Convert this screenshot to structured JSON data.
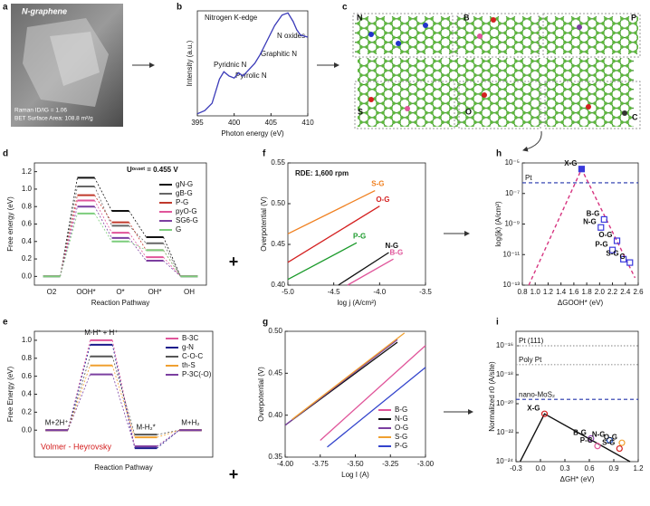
{
  "figure": {
    "panel_labels": [
      "a",
      "b",
      "c",
      "d",
      "f",
      "h",
      "e",
      "g",
      "i"
    ],
    "photo": {
      "title": "N-graphene",
      "raman": "Raman ID/IG = 1.06",
      "bet": "BET Surface Area: 108.8 m²/g"
    },
    "structure": {
      "labels": [
        "N",
        "B",
        "P",
        "S",
        "O",
        "C"
      ]
    },
    "plus_signs": [
      "+",
      "+"
    ]
  },
  "chart_data": [
    {
      "type": "line",
      "title": "Nitrogen K-edge",
      "x_label": "Photon energy (eV)",
      "y_label": "Intensity (a.u.)",
      "xlim": [
        395,
        410
      ],
      "ylim": [
        0,
        1
      ],
      "xticks": [
        395,
        400,
        405,
        410
      ],
      "series": [
        {
          "color": "#3a3ab8",
          "x": [
            395,
            396,
            397,
            398,
            398.6,
            399.3,
            400,
            400.6,
            401.2,
            402,
            402.8,
            403.5,
            404.5,
            405.5,
            406.5,
            407.3,
            408,
            408.5,
            409,
            410
          ],
          "values": [
            0.02,
            0.05,
            0.12,
            0.35,
            0.42,
            0.38,
            0.36,
            0.41,
            0.38,
            0.44,
            0.5,
            0.58,
            0.72,
            0.86,
            0.96,
            0.98,
            0.9,
            0.82,
            0.77,
            0.75
          ]
        }
      ],
      "annotations": [
        "Pyridnic N",
        "Pyrrolic N",
        "Graphitic N",
        "N oxides"
      ]
    },
    {
      "type": "energy",
      "x_label": "Reaction Pathway",
      "y_label": "Free energy (eV)",
      "categories": [
        "O2",
        "OOH*",
        "O*",
        "OH*",
        "OH"
      ],
      "ylim": [
        -0.1,
        1.3
      ],
      "yticks": [
        {
          "value": 0,
          "label": "0.0"
        },
        0.2,
        0.4,
        0.6,
        0.8,
        {
          "value": 1,
          "label": "1.0"
        },
        1.2
      ],
      "legend": "upper right",
      "annotations": [
        "Uᵒⁿˢᵉᵗ = 0.455 V"
      ],
      "series": [
        {
          "name": "gN-G",
          "color": "#111111",
          "values": [
            0,
            1.13,
            0.75,
            0.45,
            0
          ]
        },
        {
          "name": "gB-G",
          "color": "#666666",
          "values": [
            0,
            1.03,
            0.58,
            0.38,
            0
          ]
        },
        {
          "name": "P-G",
          "color": "#c0392b",
          "values": [
            0,
            0.93,
            0.62,
            0.3,
            0
          ]
        },
        {
          "name": "pyO-G",
          "color": "#e0559a",
          "values": [
            0,
            0.87,
            0.5,
            0.22,
            0
          ]
        },
        {
          "name": "SG6-G",
          "color": "#7b3fa0",
          "values": [
            0,
            0.8,
            0.44,
            0.18,
            0
          ]
        },
        {
          "name": "G",
          "color": "#7ccd7c",
          "values": [
            0,
            0.72,
            0.4,
            0.3,
            0
          ]
        }
      ]
    },
    {
      "type": "line",
      "title": "RDE: 1,600 rpm",
      "x_label": "log j (A/cm²)",
      "y_label": "Overpotential (V)",
      "xlim": [
        -5.0,
        -3.5
      ],
      "ylim": [
        0.4,
        0.55
      ],
      "xticks": [
        {
          "value": -5,
          "label": "-5.0"
        },
        -4.5,
        {
          "value": -4,
          "label": "-4.0"
        },
        -3.5
      ],
      "yticks": [
        {
          "value": 0.4,
          "label": "0.40"
        },
        0.45,
        {
          "value": 0.5,
          "label": "0.50"
        },
        0.55
      ],
      "series": [
        {
          "name": "S-G",
          "color": "#f08020",
          "x": [
            -5.0,
            -4.05
          ],
          "values": [
            0.463,
            0.516
          ]
        },
        {
          "name": "O-G",
          "color": "#d42020",
          "x": [
            -5.0,
            -4.0
          ],
          "values": [
            0.428,
            0.497
          ]
        },
        {
          "name": "P-G",
          "color": "#1a9a2a",
          "x": [
            -5.0,
            -4.25
          ],
          "values": [
            0.407,
            0.452
          ]
        },
        {
          "name": "N-G",
          "color": "#111111",
          "x": [
            -4.45,
            -3.9
          ],
          "values": [
            0.4,
            0.44
          ]
        },
        {
          "name": "B-G",
          "color": "#e0559a",
          "x": [
            -4.35,
            -3.85
          ],
          "values": [
            0.4,
            0.432
          ]
        }
      ]
    },
    {
      "type": "scatter",
      "log_y": true,
      "x_label": "ΔGOOH* (eV)",
      "y_label": "log(jk) (A/cm²)",
      "xlim": [
        0.8,
        2.6
      ],
      "ylim": [
        1e-13,
        1e-05
      ],
      "xticks": [
        0.8,
        {
          "value": 1,
          "label": "1.0"
        },
        1.2,
        1.4,
        1.6,
        1.8,
        {
          "value": 2,
          "label": "2.0"
        },
        2.2,
        2.4,
        2.6
      ],
      "yticks": [
        {
          "value": 1e-13,
          "label": "10⁻¹³"
        },
        {
          "value": 1e-11,
          "label": "10⁻¹¹"
        },
        {
          "value": 1e-09,
          "label": "10⁻⁹"
        },
        {
          "value": 1e-07,
          "label": "10⁻⁷"
        },
        {
          "value": 1e-05,
          "label": "10⁻⁵"
        }
      ],
      "ref_lines": [
        {
          "label": "Pt",
          "value": 5e-07,
          "color": "#2233aa",
          "style": "dashed"
        }
      ],
      "lines": [
        {
          "color": "#d6337f",
          "style": "dashed",
          "x": [
            0.9,
            1.72,
            2.55
          ],
          "values": [
            1e-13,
            4e-06,
            3e-13
          ]
        }
      ],
      "points": {
        "marker": "square",
        "color": "#3a3adc",
        "names": [
          "X-G",
          "B-G",
          "N-G",
          "O-G",
          "P-G",
          "S-G",
          "G"
        ],
        "x": [
          1.72,
          2.07,
          2.02,
          2.27,
          2.2,
          2.37,
          2.47
        ],
        "values": [
          4e-06,
          2e-09,
          6e-10,
          8e-11,
          2e-11,
          5e-12,
          3e-12
        ]
      }
    },
    {
      "type": "energy",
      "x_label": "Reaction Pathway",
      "y_label": "Free Energy (eV)",
      "categories": [
        "M+2H⁺",
        "M-H* + H⁺",
        "M-H₂*",
        "M+H₂"
      ],
      "ylim": [
        -0.3,
        1.1
      ],
      "yticks": [
        {
          "value": 0,
          "label": "0.0"
        },
        0.2,
        0.4,
        0.6,
        0.8,
        {
          "value": 1,
          "label": "1.0"
        }
      ],
      "legend": "upper right",
      "annotations": [
        "Volmer - Heyrovsky"
      ],
      "series": [
        {
          "name": "B-3C",
          "color": "#e0559a",
          "values": [
            0,
            1.0,
            -0.18,
            0
          ]
        },
        {
          "name": "g-N",
          "color": "#1a1a8c",
          "values": [
            0,
            0.95,
            -0.2,
            0
          ]
        },
        {
          "name": "C-O-C",
          "color": "#555555",
          "values": [
            0,
            0.82,
            -0.05,
            0
          ]
        },
        {
          "name": "th-S",
          "color": "#f0a030",
          "values": [
            0,
            0.72,
            -0.08,
            0
          ]
        },
        {
          "name": "P-3C(-O)",
          "color": "#7b3fa0",
          "values": [
            0,
            0.62,
            -0.18,
            0
          ]
        }
      ]
    },
    {
      "type": "line",
      "x_label": "Log I (A)",
      "y_label": "Overpotential (V)",
      "xlim": [
        -4.0,
        -3.0
      ],
      "ylim": [
        0.35,
        0.5
      ],
      "legend": "lower right",
      "xticks": [
        {
          "value": -4,
          "label": "-4.00"
        },
        -3.75,
        {
          "value": -3.5,
          "label": "-3.50"
        },
        -3.25,
        {
          "value": -3,
          "label": "-3.00"
        }
      ],
      "yticks": [
        0.35,
        {
          "value": 0.4,
          "label": "0.40"
        },
        0.45,
        {
          "value": 0.5,
          "label": "0.50"
        }
      ],
      "series": [
        {
          "name": "B-G",
          "color": "#e0559a",
          "x": [
            -3.75,
            -3.0
          ],
          "values": [
            0.37,
            0.483
          ]
        },
        {
          "name": "N-G",
          "color": "#111111",
          "x": [
            -4.0,
            -3.2
          ],
          "values": [
            0.388,
            0.487
          ]
        },
        {
          "name": "O-G",
          "color": "#7b3fa0",
          "x": [
            -4.0,
            -3.2
          ],
          "values": [
            0.388,
            0.49
          ]
        },
        {
          "name": "S-G",
          "color": "#f0a030",
          "x": [
            -3.95,
            -3.15
          ],
          "values": [
            0.395,
            0.498
          ]
        },
        {
          "name": "P-G",
          "color": "#3344cc",
          "x": [
            -3.7,
            -3.0
          ],
          "values": [
            0.362,
            0.457
          ]
        }
      ]
    },
    {
      "type": "scatter",
      "log_y": true,
      "x_label": "ΔGH* (eV)",
      "y_label": "Normalized r0 (A/site)",
      "xlim": [
        -0.3,
        1.2
      ],
      "ylim": [
        1e-24,
        1e-15
      ],
      "xticks": [
        -0.3,
        {
          "value": 0,
          "label": "0.0"
        },
        0.3,
        0.6,
        0.9,
        1.2
      ],
      "yticks": [
        {
          "value": 1e-24,
          "label": "10⁻²⁴"
        },
        {
          "value": 1e-22,
          "label": "10⁻²²"
        },
        {
          "value": 1e-20,
          "label": "10⁻²⁰"
        },
        {
          "value": 1e-18,
          "label": "10⁻¹⁸"
        },
        {
          "value": 1e-16,
          "label": "10⁻¹⁶"
        }
      ],
      "ref_lines": [
        {
          "label": "Pt (111)",
          "value": 1e-16,
          "color": "#999999",
          "style": "dotted"
        },
        {
          "label": "Poly Pt",
          "value": 5e-18,
          "color": "#999999",
          "style": "dotted"
        },
        {
          "label": "nano-MoS₂",
          "value": 2e-20,
          "color": "#2233aa",
          "style": "dashed"
        }
      ],
      "lines": [
        {
          "color": "#111111",
          "style": "solid",
          "x": [
            -0.25,
            0.05,
            1.1
          ],
          "values": [
            1e-24,
            2e-21,
            1e-24
          ]
        }
      ],
      "points": {
        "marker": "circle",
        "colors": [
          "#d42020",
          "#8e44ad",
          "#e0559a",
          "#2255cc",
          "#f0a030",
          "#d42020"
        ],
        "names": [
          "X-G",
          "B-G",
          "P-G",
          "N-G",
          "O-G",
          "S-G"
        ],
        "x": [
          0.05,
          0.62,
          0.7,
          0.85,
          1.0,
          0.97
        ],
        "values": [
          2e-21,
          4e-23,
          1.2e-23,
          3e-23,
          2e-23,
          8e-24
        ]
      }
    }
  ]
}
